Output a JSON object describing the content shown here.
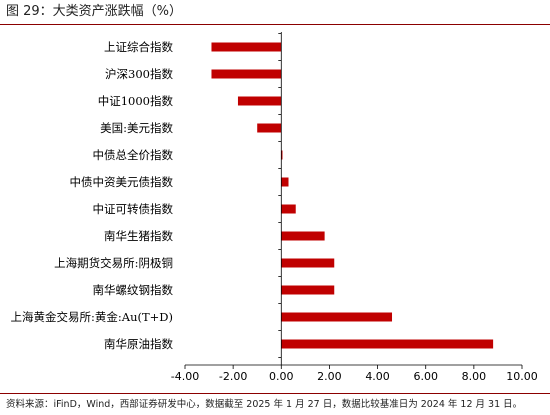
{
  "title": "图 29：大类资产涨跌幅（%）",
  "source": "资料来源：iFinD，Wind，西部证券研发中心，数据截至 2025 年 1 月 27 日，数据比较基准日为 2024 年 12 月 31 日。",
  "chart_data": {
    "type": "bar",
    "orientation": "horizontal",
    "title": "",
    "xlabel": "",
    "ylabel": "",
    "categories": [
      "上证综合指数",
      "沪深300指数",
      "中证1000指数",
      "美国:美元指数",
      "中债总全价指数",
      "中债中资美元债指数",
      "中证可转债指数",
      "南华生猪指数",
      "上海期货交易所:阴极铜",
      "南华螺纹钢指数",
      "上海黄金交易所:黄金:Au(T+D)",
      "南华原油指数"
    ],
    "values": [
      -2.9,
      -2.9,
      -1.8,
      -1.0,
      0.05,
      0.3,
      0.6,
      1.8,
      2.2,
      2.2,
      4.6,
      8.8
    ],
    "xlim": [
      -4.0,
      10.0
    ],
    "xticks": [
      "-4.00",
      "-2.00",
      "0.00",
      "2.00",
      "4.00",
      "6.00",
      "8.00",
      "10.00"
    ],
    "grid": false,
    "bar_color": "#C00000"
  }
}
